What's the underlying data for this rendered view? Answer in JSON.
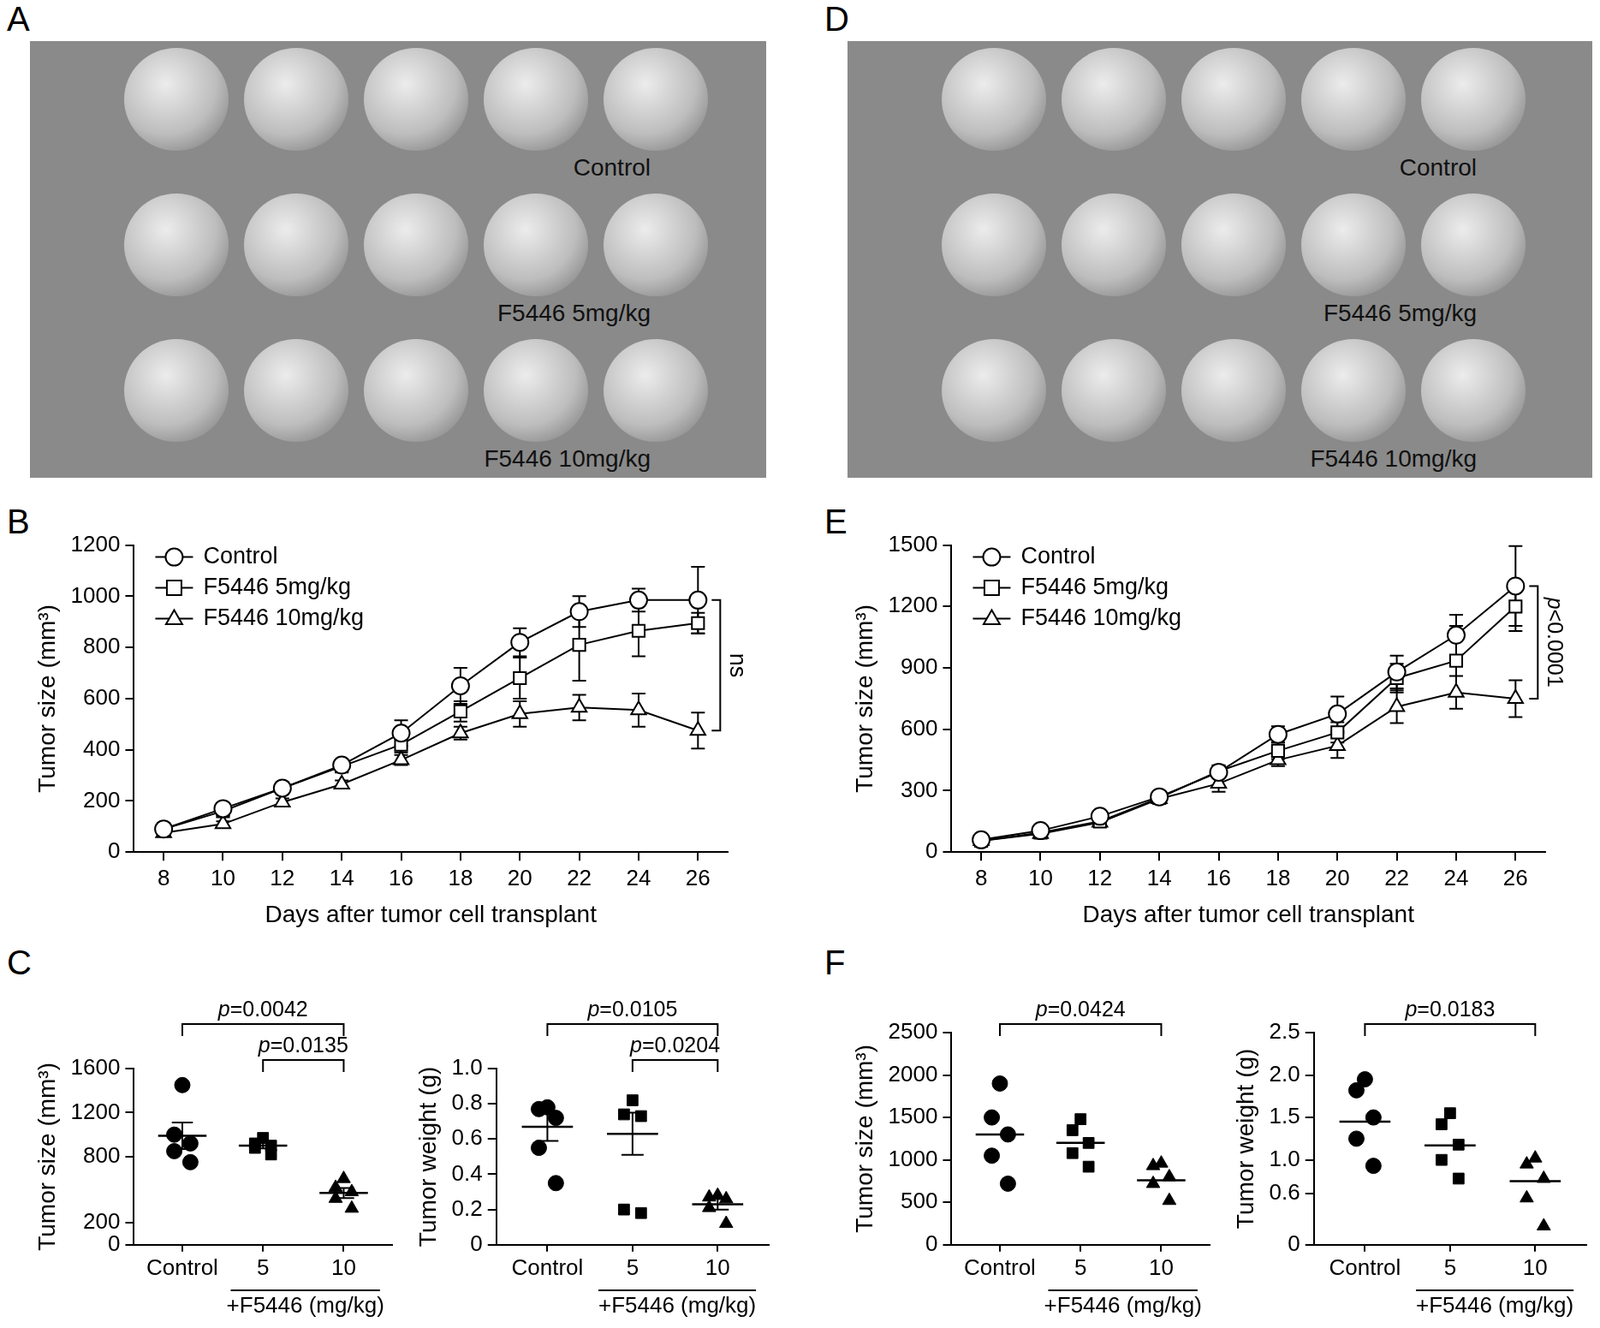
{
  "photos": [
    {
      "panel": "A",
      "rows": [
        "Control",
        "F5446 5mg/kg",
        "F5446 10mg/kg"
      ]
    },
    {
      "panel": "D",
      "rows": [
        "Control",
        "F5446 5mg/kg",
        "F5446 10mg/kg"
      ]
    }
  ],
  "chart_data": [
    {
      "panel": "B",
      "type": "line",
      "x": [
        8,
        10,
        12,
        14,
        16,
        18,
        20,
        22,
        24,
        26
      ],
      "xlim": [
        7,
        27
      ],
      "xticks": [
        8,
        10,
        12,
        14,
        16,
        18,
        20,
        22,
        24,
        26
      ],
      "ylim": [
        0,
        1200
      ],
      "yticks": [
        0,
        200,
        400,
        600,
        800,
        1000,
        1200
      ],
      "x_label": "Days after tumor cell transplant",
      "y_label": "Tumor size (mm³)",
      "legend": "top-left",
      "series": [
        {
          "name": "Control",
          "color": "#000000",
          "marker": "circle",
          "values": [
            90,
            170,
            250,
            340,
            465,
            650,
            820,
            940,
            985,
            985
          ],
          "errors": [
            15,
            15,
            15,
            20,
            50,
            70,
            55,
            60,
            45,
            130
          ]
        },
        {
          "name": "F5446 5mg/kg",
          "color": "#000000",
          "marker": "square",
          "values": [
            90,
            160,
            250,
            335,
            420,
            550,
            680,
            810,
            865,
            895
          ],
          "errors": [
            10,
            15,
            15,
            20,
            30,
            40,
            80,
            140,
            100,
            40
          ]
        },
        {
          "name": "F5446 10mg/kg",
          "color": "#000000",
          "marker": "triangle",
          "values": [
            75,
            110,
            195,
            265,
            360,
            465,
            540,
            565,
            555,
            475
          ],
          "errors": [
            10,
            10,
            15,
            15,
            20,
            25,
            50,
            50,
            65,
            70
          ]
        }
      ],
      "annotations": [
        {
          "text": "ns",
          "x": 26,
          "from": "Control",
          "to": "F5446 10mg/kg"
        }
      ]
    },
    {
      "panel": "C",
      "type": "strip",
      "categories": [
        "Control",
        "5",
        "10"
      ],
      "group_label": "+F5446 (mg/kg)",
      "y_label": "Tumor size (mm³)",
      "ylim": [
        0,
        1600
      ],
      "yticks": [
        0,
        200,
        800,
        1200,
        1600
      ],
      "markers": [
        "circle",
        "square",
        "triangle"
      ],
      "color": "#000000",
      "values": [
        [
          1450,
          1000,
          920,
          850,
          750
        ],
        [
          970,
          920,
          900,
          880,
          820
        ],
        [
          600,
          520,
          480,
          420,
          330
        ]
      ],
      "means": [
        990,
        900,
        470
      ],
      "sem": [
        120,
        25,
        45
      ],
      "comparisons": [
        {
          "from": "Control",
          "to": "10",
          "text": "p=0.0042"
        },
        {
          "from": "5",
          "to": "10",
          "text": "p=0.0135"
        }
      ]
    },
    {
      "type": "strip",
      "categories": [
        "Control",
        "5",
        "10"
      ],
      "group_label": "+F5446 (mg/kg)",
      "y_label": "Tumor weight (g)",
      "ylim": [
        0,
        1
      ],
      "yticks": [
        0,
        0.2,
        0.4,
        0.6,
        0.8,
        {
          "value": 1,
          "label": "1.0"
        }
      ],
      "markers": [
        "circle",
        "square",
        "triangle"
      ],
      "color": "#000000",
      "values": [
        [
          0.78,
          0.77,
          0.72,
          0.55,
          0.35
        ],
        [
          0.82,
          0.74,
          0.73,
          0.2,
          0.18
        ],
        [
          0.28,
          0.27,
          0.26,
          0.21,
          0.12
        ]
      ],
      "means": [
        0.67,
        0.63,
        0.23
      ],
      "sem": [
        0.08,
        0.12,
        0.03
      ],
      "comparisons": [
        {
          "from": "Control",
          "to": "10",
          "text": "p=0.0105"
        },
        {
          "from": "5",
          "to": "10",
          "text": "p=0.0204"
        }
      ]
    },
    {
      "panel": "E",
      "type": "line",
      "x": [
        8,
        10,
        12,
        14,
        16,
        18,
        20,
        22,
        24,
        26
      ],
      "xlim": [
        7,
        27
      ],
      "xticks": [
        8,
        10,
        12,
        14,
        16,
        18,
        20,
        22,
        24,
        26
      ],
      "ylim": [
        0,
        1500
      ],
      "yticks": [
        0,
        300,
        600,
        900,
        1200,
        1500
      ],
      "x_label": "Days after tumor cell transplant",
      "y_label": "Tumor size (mm³)",
      "legend": "top-left",
      "series": [
        {
          "name": "Control",
          "color": "#000000",
          "marker": "circle",
          "values": [
            60,
            105,
            175,
            270,
            390,
            575,
            675,
            880,
            1060,
            1300
          ],
          "errors": [
            10,
            15,
            20,
            20,
            25,
            40,
            85,
            80,
            100,
            195
          ]
        },
        {
          "name": "F5446 5mg/kg",
          "color": "#000000",
          "marker": "square",
          "values": [
            55,
            95,
            150,
            265,
            395,
            495,
            585,
            850,
            935,
            1200
          ],
          "errors": [
            10,
            10,
            15,
            20,
            25,
            40,
            50,
            70,
            170,
            120
          ]
        },
        {
          "name": "F5446 10mg/kg",
          "color": "#000000",
          "marker": "triangle",
          "values": [
            55,
            90,
            145,
            260,
            335,
            450,
            520,
            710,
            780,
            750
          ],
          "errors": [
            10,
            10,
            15,
            15,
            40,
            30,
            60,
            80,
            80,
            90
          ]
        }
      ],
      "annotations": [
        {
          "text": "p<0.0001",
          "x": 26,
          "from": "Control",
          "to": "F5446 10mg/kg"
        }
      ]
    },
    {
      "panel": "F",
      "type": "strip",
      "categories": [
        "Control",
        "5",
        "10"
      ],
      "group_label": "+F5446 (mg/kg)",
      "y_label": "Tumor size (mm³)",
      "ylim": [
        0,
        2500
      ],
      "yticks": [
        0,
        500,
        1000,
        1500,
        2000,
        2500
      ],
      "markers": [
        "circle",
        "square",
        "triangle"
      ],
      "color": "#000000",
      "values": [
        [
          1900,
          1500,
          1300,
          1050,
          720
        ],
        [
          1480,
          1350,
          1200,
          1080,
          920
        ],
        [
          960,
          930,
          800,
          720,
          520
        ]
      ],
      "means": [
        1300,
        1200,
        760
      ],
      "comparisons": [
        {
          "from": "Control",
          "to": "10",
          "text": "p=0.0424"
        }
      ]
    },
    {
      "type": "strip",
      "categories": [
        "Control",
        "5",
        "10"
      ],
      "group_label": "+F5446 (mg/kg)",
      "y_label": "Tumor weight (g)",
      "ylim": [
        0,
        2.5
      ],
      "yticks": [
        0,
        0.6,
        {
          "value": 1,
          "label": "1.0"
        },
        1.5,
        {
          "value": 2,
          "label": "2.0"
        },
        2.5
      ],
      "markers": [
        "circle",
        "square",
        "triangle"
      ],
      "color": "#000000",
      "values": [
        [
          1.95,
          1.82,
          1.5,
          1.25,
          0.93
        ],
        [
          1.55,
          1.42,
          1.18,
          1.0,
          0.78
        ],
        [
          1.02,
          0.95,
          0.78,
          0.55,
          0.22
        ]
      ],
      "means": [
        1.45,
        1.17,
        0.75
      ],
      "comparisons": [
        {
          "from": "Control",
          "to": "10",
          "text": "p=0.0183"
        }
      ]
    }
  ]
}
